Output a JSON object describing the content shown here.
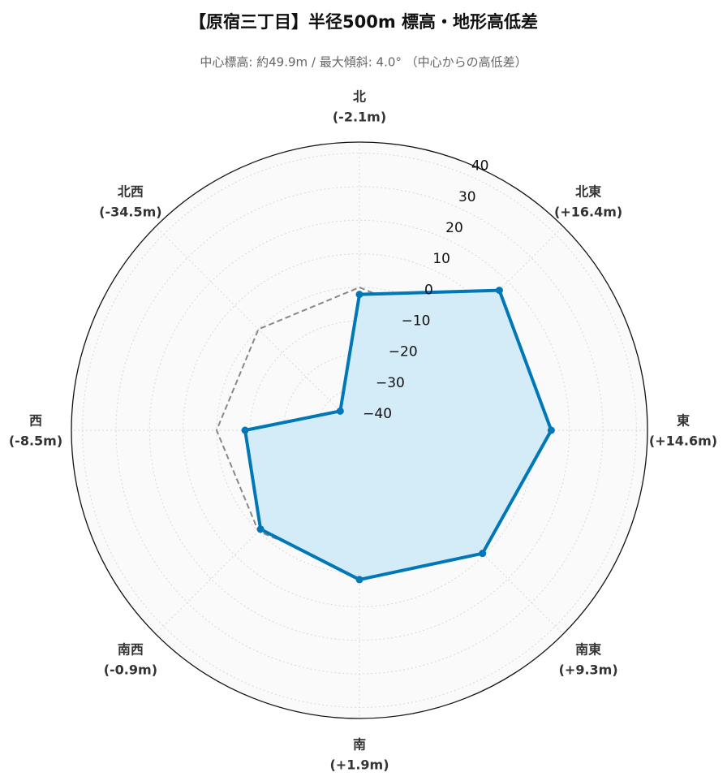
{
  "chart_data": {
    "type": "radar",
    "title": "【原宿三丁目】半径500m 標高・地形高低差",
    "subtitle": "中心標高: 約49.9m / 最大傾斜: 4.0° （中心からの高低差）",
    "categories": [
      "北",
      "北東",
      "東",
      "南東",
      "南",
      "南西",
      "西",
      "北西"
    ],
    "series": [
      {
        "color": "#0077b6",
        "fill": "#d3ecf8",
        "values": [
          -2.1,
          16.4,
          14.6,
          9.3,
          1.9,
          -0.9,
          -8.5,
          -34.5
        ],
        "value_labels": [
          "(-2.1m)",
          "(+16.4m)",
          "(+14.6m)",
          "(+9.3m)",
          "(+1.9m)",
          "(-0.9m)",
          "(-8.5m)",
          "(-34.5m)"
        ]
      }
    ],
    "reference": 0,
    "ylim": [
      -42.6,
      43.3
    ],
    "yticks": [
      {
        "value": -40,
        "label": "−40"
      },
      {
        "value": -30,
        "label": "−30"
      },
      {
        "value": -20,
        "label": "−20"
      },
      {
        "value": -10,
        "label": "−10"
      },
      0,
      10,
      20,
      30,
      40
    ],
    "grid": true
  }
}
